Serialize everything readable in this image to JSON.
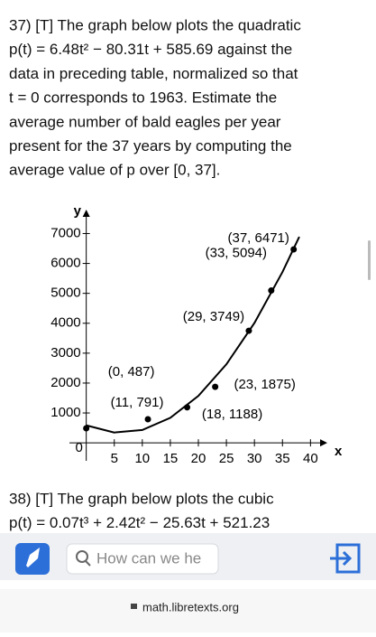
{
  "problem_37": {
    "lines": [
      "37) [T] The graph below plots the quadratic",
      "p(t) = 6.48t² − 80.31t + 585.69 against the",
      "data in preceding table, normalized so that",
      "t = 0 corresponds to 1963. Estimate the",
      "average number of bald eagles per year",
      "present for the 37 years by computing the",
      "average value of p over [0, 37]."
    ]
  },
  "chart_data": {
    "type": "scatter",
    "x_label": "x",
    "y_label": "y",
    "x": [
      0,
      11,
      18,
      23,
      29,
      33,
      37
    ],
    "values": [
      487,
      791,
      1188,
      1875,
      3749,
      5094,
      6471
    ],
    "point_labels": [
      "(0, 487)",
      "(11, 791)",
      "(18, 1188)",
      "(23, 1875)",
      "(29, 3749)",
      "(33, 5094)",
      "(37, 6471)"
    ],
    "color": "#000000",
    "curve": {
      "x": [
        0,
        5,
        10,
        15,
        20,
        25,
        30,
        35,
        38
      ],
      "values": [
        586,
        346,
        431,
        839,
        1571,
        2628,
        4008,
        5713,
        6891
      ]
    },
    "xlim": [
      -3,
      43
    ],
    "ylim": [
      -600,
      7800
    ],
    "xticks": [
      0,
      5,
      10,
      15,
      20,
      25,
      30,
      35,
      40
    ],
    "yticks": [
      1000,
      2000,
      3000,
      4000,
      5000,
      6000,
      7000
    ]
  },
  "problem_38": {
    "lines": [
      "38) [T] The graph below plots the cubic",
      "p(t) = 0.07t³ + 2.42t² − 25.63t + 521.23"
    ]
  },
  "overlay": {
    "search_placeholder": "How can we he"
  },
  "browser": {
    "url": "math.libretexts.org"
  }
}
